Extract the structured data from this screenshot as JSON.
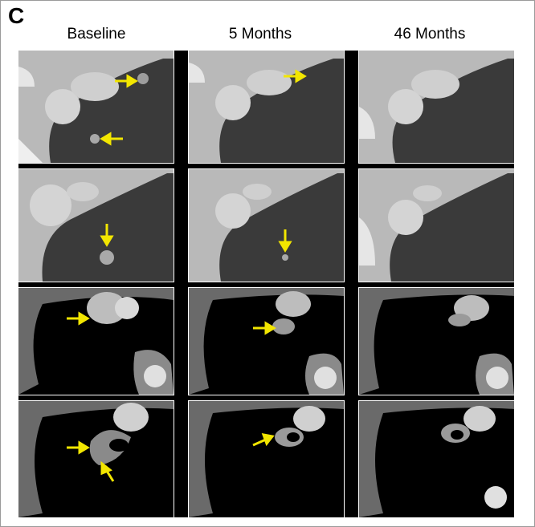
{
  "panel_label": "C",
  "columns": [
    "Baseline",
    "5 Months",
    "46 Months"
  ],
  "figure": {
    "rows": 4,
    "row_types": [
      "lung-window",
      "lung-window",
      "mediastinal-window",
      "mediastinal-window"
    ],
    "annotation_color": "#f2e600",
    "arrows": [
      {
        "row": 1,
        "col": 1,
        "count": 2
      },
      {
        "row": 1,
        "col": 2,
        "count": 1
      },
      {
        "row": 2,
        "col": 1,
        "count": 1
      },
      {
        "row": 2,
        "col": 2,
        "count": 1
      },
      {
        "row": 3,
        "col": 1,
        "count": 1
      },
      {
        "row": 3,
        "col": 2,
        "count": 1
      },
      {
        "row": 4,
        "col": 1,
        "count": 2
      },
      {
        "row": 4,
        "col": 2,
        "count": 1
      }
    ]
  }
}
